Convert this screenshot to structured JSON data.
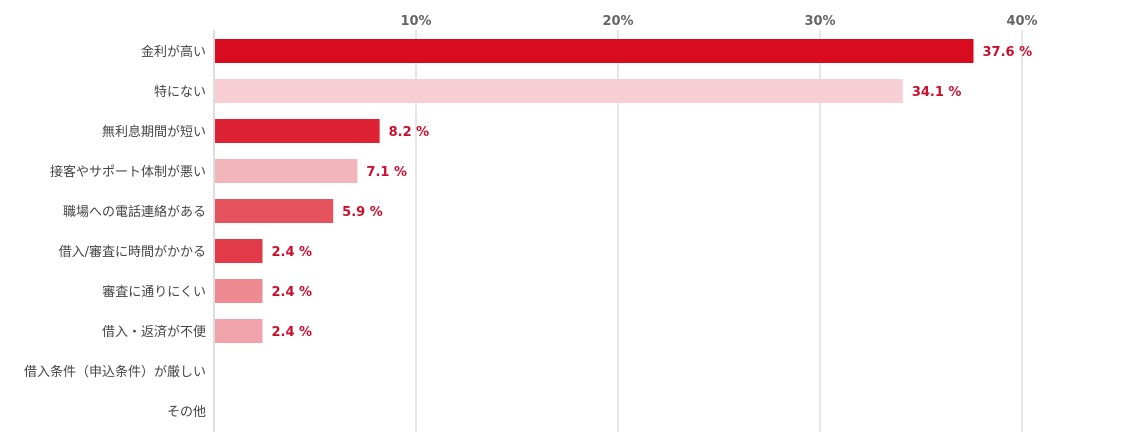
{
  "chart_data": {
    "type": "bar",
    "orientation": "horizontal",
    "categories": [
      "金利が高い",
      "特にない",
      "無利息期間が短い",
      "接客やサポート体制が悪い",
      "職場への電話連絡がある",
      "借入/審査に時間がかかる",
      "審査に通りにくい",
      "借入・返済が不便",
      "借入条件（申込条件）が厳しい",
      "その他"
    ],
    "values": [
      37.6,
      34.1,
      8.2,
      7.1,
      5.9,
      2.4,
      2.4,
      2.4,
      0,
      0
    ],
    "value_labels": [
      "37.6 %",
      "34.1 %",
      "8.2 %",
      "7.1 %",
      "5.9 %",
      "2.4 %",
      "2.4 %",
      "2.4 %",
      "",
      ""
    ],
    "bar_colors": [
      "#d90b1f",
      "#f6ced4",
      "#dd2233",
      "#f2b6ba",
      "#e5535f",
      "#e23a49",
      "#ee8a92",
      "#f0a3aa",
      "#f0a3aa",
      "#f0a3aa"
    ],
    "value_label_color": "#c8102e",
    "xlim": [
      0,
      40
    ],
    "xticks": [
      10,
      20,
      30,
      40
    ],
    "xtick_labels": [
      "10%",
      "20%",
      "30%",
      "40%"
    ],
    "grid": true,
    "xaxis_position": "top",
    "title": "",
    "xlabel": "",
    "ylabel": ""
  }
}
